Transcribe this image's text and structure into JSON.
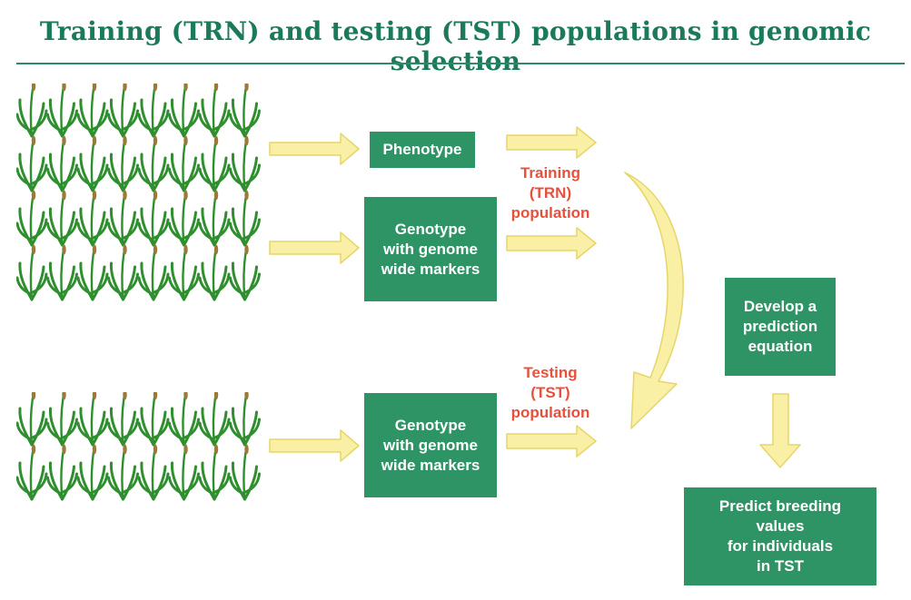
{
  "title": "Training (TRN) and testing (TST) populations in genomic selection",
  "boxes": {
    "phenotype": "Phenotype",
    "genotype_trn": "Genotype\nwith genome\nwide markers",
    "genotype_tst": "Genotype\nwith genome\nwide markers",
    "develop": "Develop a\nprediction\nequation",
    "predict": "Predict breeding\nvalues\nfor individuals\nin TST"
  },
  "labels": {
    "training": "Training\n(TRN)\npopulation",
    "testing": "Testing\n(TST)\npopulation"
  },
  "plants": {
    "top_rows": 4,
    "bottom_rows": 2,
    "columns": 8
  },
  "colors": {
    "title": "#1a7a5a",
    "box": "#2e9466",
    "label": "#e8503c",
    "arrow_fill": "#f9f0a6",
    "arrow_stroke": "#e6d56a",
    "plant_leaf": "#2f8f2f",
    "plant_head": "#9a7a3a"
  }
}
